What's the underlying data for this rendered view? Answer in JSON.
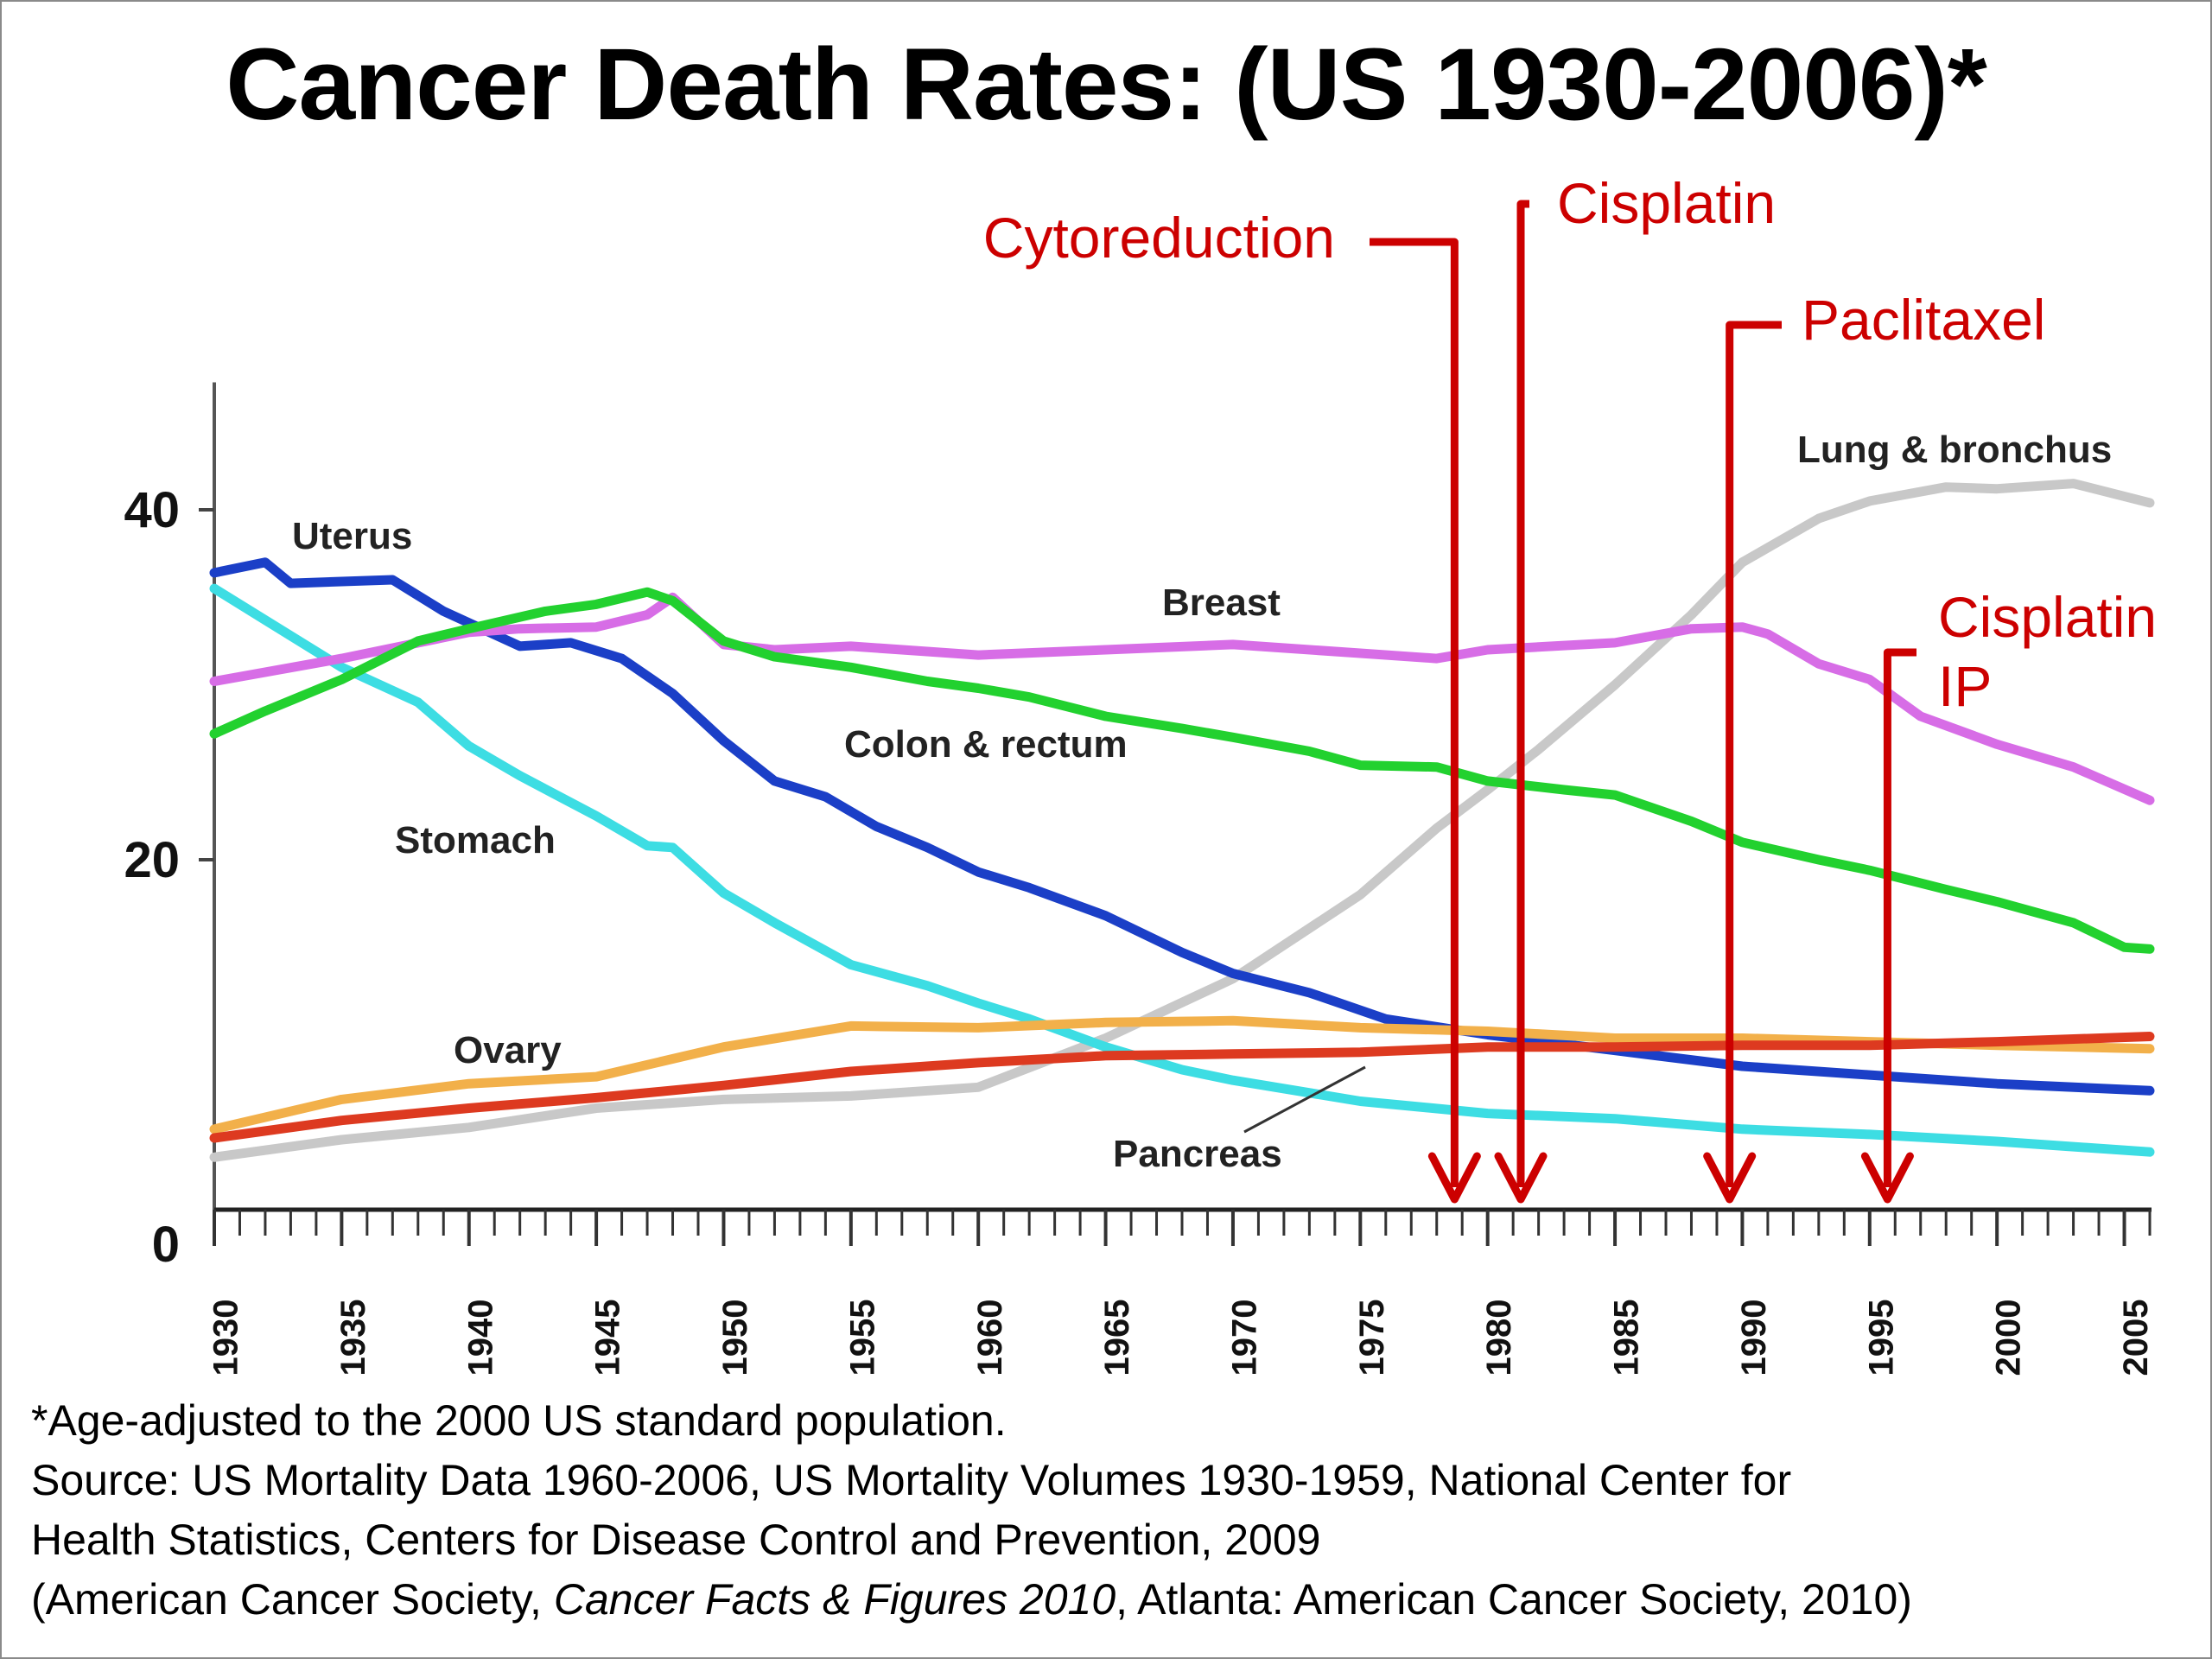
{
  "title": "Cancer Death Rates:  (US 1930-2006)*",
  "footnote": {
    "line1": "*Age-adjusted to the 2000 US standard population.",
    "line2": "Source:  US Mortality Data 1960-2006, US Mortality Volumes 1930-1959, National Center for",
    "line3": "Health Statistics, Centers for Disease Control and Prevention, 2009",
    "line4_pre": "(American Cancer Society, ",
    "line4_pub": "Cancer Facts & Figures 2010",
    "line4_post": ", Atlanta: American Cancer Society, 2010)"
  },
  "chart_data": {
    "type": "line",
    "title": "Cancer Death Rates:  (US 1930-2006)*",
    "xlabel": "",
    "ylabel": "",
    "xlim": [
      1930,
      2006
    ],
    "ylim": [
      0,
      50
    ],
    "y_ticks": [
      0,
      20,
      40
    ],
    "x_ticks": [
      1930,
      1935,
      1940,
      1945,
      1950,
      1955,
      1960,
      1965,
      1970,
      1975,
      1980,
      1985,
      1990,
      1995,
      2000,
      2005
    ],
    "grid": false,
    "legend": "none (series labelled directly on the chart)",
    "series": [
      {
        "name": "Lung & bronchus",
        "color": "#c8c8c8",
        "points": [
          [
            1930,
            3
          ],
          [
            1935,
            4
          ],
          [
            1940,
            4.7
          ],
          [
            1945,
            5.8
          ],
          [
            1950,
            6.3
          ],
          [
            1955,
            6.5
          ],
          [
            1960,
            7
          ],
          [
            1965,
            9.8
          ],
          [
            1970,
            13.2
          ],
          [
            1975,
            18
          ],
          [
            1978,
            21.8
          ],
          [
            1980,
            24
          ],
          [
            1982,
            26.3
          ],
          [
            1985,
            30
          ],
          [
            1988,
            34
          ],
          [
            1990,
            37
          ],
          [
            1993,
            39.5
          ],
          [
            1995,
            40.5
          ],
          [
            1998,
            41.3
          ],
          [
            2000,
            41.2
          ],
          [
            2003,
            41.5
          ],
          [
            2006,
            40.4
          ]
        ]
      },
      {
        "name": "Uterus",
        "color": "#1b3fc7",
        "points": [
          [
            1930,
            36.4
          ],
          [
            1932,
            37
          ],
          [
            1933,
            35.8
          ],
          [
            1937,
            36
          ],
          [
            1939,
            34.2
          ],
          [
            1942,
            32.2
          ],
          [
            1944,
            32.4
          ],
          [
            1946,
            31.5
          ],
          [
            1948,
            29.5
          ],
          [
            1950,
            26.8
          ],
          [
            1952,
            24.5
          ],
          [
            1954,
            23.6
          ],
          [
            1956,
            21.9
          ],
          [
            1958,
            20.7
          ],
          [
            1960,
            19.3
          ],
          [
            1962,
            18.4
          ],
          [
            1965,
            16.8
          ],
          [
            1968,
            14.7
          ],
          [
            1970,
            13.5
          ],
          [
            1973,
            12.4
          ],
          [
            1976,
            10.9
          ],
          [
            1980,
            10
          ],
          [
            1985,
            9.1
          ],
          [
            1990,
            8.2
          ],
          [
            1995,
            7.7
          ],
          [
            2000,
            7.2
          ],
          [
            2006,
            6.8
          ]
        ]
      },
      {
        "name": "Stomach",
        "color": "#3ddde3",
        "points": [
          [
            1930,
            35.5
          ],
          [
            1932,
            33.7
          ],
          [
            1935,
            31
          ],
          [
            1938,
            29
          ],
          [
            1940,
            26.5
          ],
          [
            1942,
            24.8
          ],
          [
            1945,
            22.5
          ],
          [
            1947,
            20.8
          ],
          [
            1948,
            20.7
          ],
          [
            1950,
            18.1
          ],
          [
            1952,
            16.4
          ],
          [
            1955,
            14
          ],
          [
            1958,
            12.8
          ],
          [
            1960,
            11.8
          ],
          [
            1962,
            10.9
          ],
          [
            1965,
            9.3
          ],
          [
            1968,
            8
          ],
          [
            1970,
            7.4
          ],
          [
            1975,
            6.2
          ],
          [
            1980,
            5.5
          ],
          [
            1985,
            5.2
          ],
          [
            1990,
            4.6
          ],
          [
            1995,
            4.3
          ],
          [
            2000,
            3.9
          ],
          [
            2006,
            3.3
          ]
        ]
      },
      {
        "name": "Breast",
        "color": "#d76de6",
        "points": [
          [
            1930,
            30.2
          ],
          [
            1935,
            31.5
          ],
          [
            1940,
            33
          ],
          [
            1942,
            33.2
          ],
          [
            1945,
            33.3
          ],
          [
            1947,
            34
          ],
          [
            1948,
            35
          ],
          [
            1950,
            32.3
          ],
          [
            1952,
            32
          ],
          [
            1955,
            32.2
          ],
          [
            1960,
            31.7
          ],
          [
            1965,
            32
          ],
          [
            1970,
            32.3
          ],
          [
            1975,
            31.8
          ],
          [
            1978,
            31.5
          ],
          [
            1980,
            32
          ],
          [
            1985,
            32.4
          ],
          [
            1988,
            33.2
          ],
          [
            1990,
            33.3
          ],
          [
            1991,
            32.9
          ],
          [
            1993,
            31.2
          ],
          [
            1995,
            30.3
          ],
          [
            1997,
            28.2
          ],
          [
            2000,
            26.6
          ],
          [
            2003,
            25.3
          ],
          [
            2006,
            23.4
          ]
        ]
      },
      {
        "name": "Colon & rectum",
        "color": "#22d12f",
        "points": [
          [
            1930,
            27.2
          ],
          [
            1932,
            28.5
          ],
          [
            1935,
            30.3
          ],
          [
            1938,
            32.5
          ],
          [
            1940,
            33.2
          ],
          [
            1943,
            34.2
          ],
          [
            1945,
            34.6
          ],
          [
            1947,
            35.3
          ],
          [
            1948,
            34.8
          ],
          [
            1950,
            32.5
          ],
          [
            1952,
            31.6
          ],
          [
            1955,
            31
          ],
          [
            1958,
            30.2
          ],
          [
            1960,
            29.8
          ],
          [
            1962,
            29.3
          ],
          [
            1965,
            28.2
          ],
          [
            1968,
            27.5
          ],
          [
            1970,
            27
          ],
          [
            1973,
            26.2
          ],
          [
            1975,
            25.4
          ],
          [
            1978,
            25.3
          ],
          [
            1980,
            24.5
          ],
          [
            1983,
            24
          ],
          [
            1985,
            23.7
          ],
          [
            1988,
            22.2
          ],
          [
            1990,
            21
          ],
          [
            1993,
            20
          ],
          [
            1995,
            19.4
          ],
          [
            1998,
            18.3
          ],
          [
            2000,
            17.6
          ],
          [
            2003,
            16.4
          ],
          [
            2005,
            15
          ],
          [
            2006,
            14.9
          ]
        ]
      },
      {
        "name": "Ovary",
        "color": "#f2b04a",
        "points": [
          [
            1930,
            4.6
          ],
          [
            1935,
            6.3
          ],
          [
            1940,
            7.2
          ],
          [
            1945,
            7.6
          ],
          [
            1950,
            9.3
          ],
          [
            1955,
            10.5
          ],
          [
            1960,
            10.4
          ],
          [
            1965,
            10.7
          ],
          [
            1970,
            10.8
          ],
          [
            1975,
            10.4
          ],
          [
            1980,
            10.2
          ],
          [
            1985,
            9.8
          ],
          [
            1990,
            9.8
          ],
          [
            1995,
            9.6
          ],
          [
            2000,
            9.4
          ],
          [
            2006,
            9.2
          ]
        ]
      },
      {
        "name": "Pancreas",
        "color": "#dd3a20",
        "points": [
          [
            1930,
            4.1
          ],
          [
            1935,
            5.1
          ],
          [
            1940,
            5.8
          ],
          [
            1945,
            6.4
          ],
          [
            1950,
            7.1
          ],
          [
            1955,
            7.9
          ],
          [
            1960,
            8.4
          ],
          [
            1965,
            8.8
          ],
          [
            1970,
            8.9
          ],
          [
            1975,
            9
          ],
          [
            1980,
            9.3
          ],
          [
            1985,
            9.3
          ],
          [
            1990,
            9.4
          ],
          [
            1995,
            9.4
          ],
          [
            2000,
            9.6
          ],
          [
            2006,
            9.9
          ]
        ]
      }
    ],
    "series_labels": [
      {
        "name": "Lung & bronchus",
        "text": "Lung & bronchus"
      },
      {
        "name": "Uterus",
        "text": "Uterus"
      },
      {
        "name": "Breast",
        "text": "Breast"
      },
      {
        "name": "Colon & rectum",
        "text": "Colon & rectum"
      },
      {
        "name": "Stomach",
        "text": "Stomach"
      },
      {
        "name": "Ovary",
        "text": "Ovary"
      },
      {
        "name": "Pancreas",
        "text": "Pancreas"
      }
    ],
    "annotations": [
      {
        "text": "Cytoreduction",
        "year": 1978.7,
        "color": "#cc0000"
      },
      {
        "text": "Cisplatin",
        "year": 1981.3,
        "color": "#cc0000"
      },
      {
        "text": "Paclitaxel",
        "year": 1989.5,
        "color": "#cc0000"
      },
      {
        "text": "Cisplatin IP",
        "lines": [
          "Cisplatin",
          "IP"
        ],
        "year": 1995.7,
        "color": "#cc0000"
      }
    ]
  }
}
